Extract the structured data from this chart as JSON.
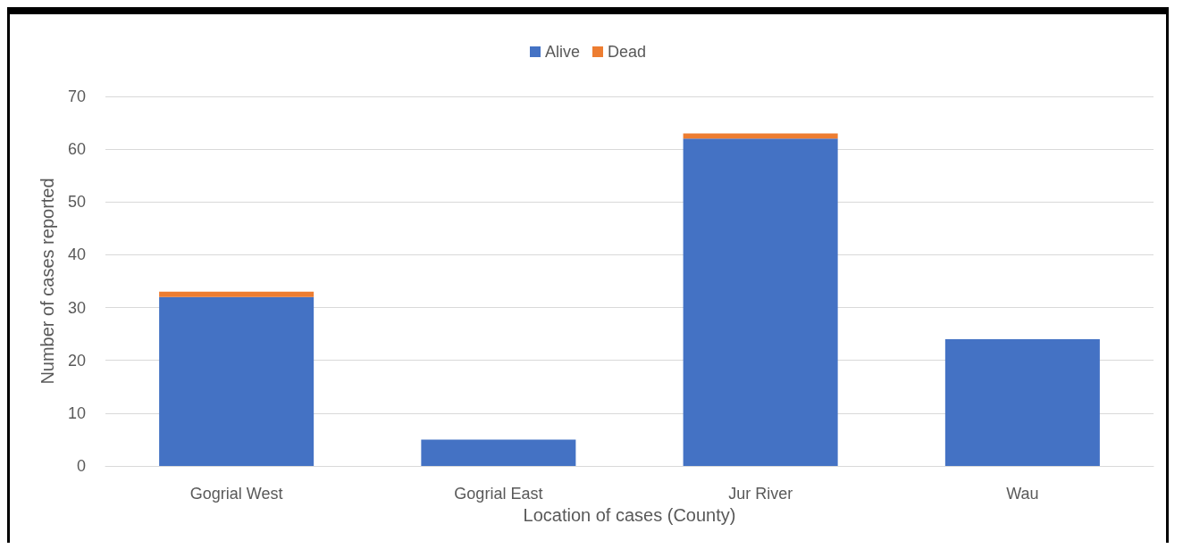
{
  "chart_data": {
    "type": "bar",
    "xlabel": "Location of cases (County)",
    "ylabel": "Number of cases reported",
    "categories": [
      "Gogrial West",
      "Gogrial East",
      "Jur River",
      "Wau"
    ],
    "stacked": true,
    "series": [
      {
        "name": "Alive",
        "color": "#4472c4",
        "values": [
          32,
          5,
          62,
          24
        ]
      },
      {
        "name": "Dead",
        "color": "#ed7d31",
        "values": [
          1,
          0,
          1,
          0
        ]
      }
    ],
    "ylim": [
      0,
      70
    ],
    "yticks": [
      0,
      10,
      20,
      30,
      40,
      50,
      60,
      70
    ],
    "grid": "y",
    "legend": "top"
  }
}
